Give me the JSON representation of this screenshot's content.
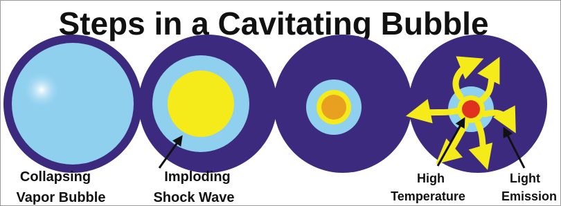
{
  "title": "Steps in a Cavitating Bubble",
  "labels": [
    {
      "lines": [
        "Collapsing",
        "Vapor Bubble"
      ]
    },
    {
      "lines": [
        "Imploding",
        "Shock Wave"
      ]
    },
    {
      "lines": [
        "High",
        "Temperature"
      ]
    },
    {
      "lines": [
        "Light",
        "Emission"
      ]
    }
  ]
}
